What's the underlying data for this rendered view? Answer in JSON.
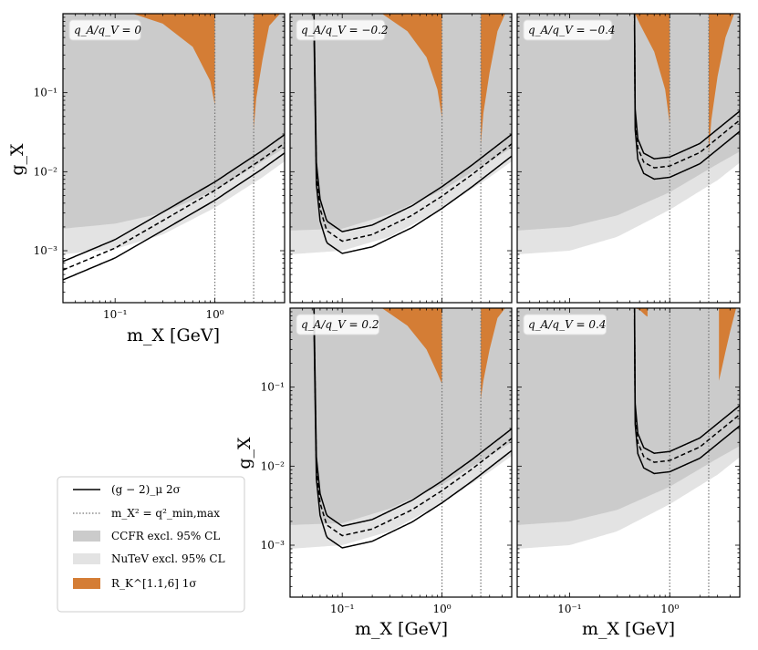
{
  "colors": {
    "nutev": "#e3e3e3",
    "ccfr": "#cbcbcb",
    "rk": "#d47d35",
    "line": "#000000",
    "vline": "#777777"
  },
  "axes": {
    "xlabel": "m_X [GeV]",
    "ylabel": "g_X"
  },
  "legend": {
    "items": [
      {
        "key": "g2",
        "label": "(g − 2)_μ 2σ"
      },
      {
        "key": "mx",
        "label": "m_X² = q²_min,max"
      },
      {
        "key": "ccfr",
        "label": "CCFR excl. 95% CL"
      },
      {
        "key": "nutev",
        "label": "NuTeV excl. 95% CL"
      },
      {
        "key": "rk",
        "label": "R_K^[1.1,6] 1σ"
      }
    ]
  },
  "chart_data": [
    {
      "type": "area",
      "annotation": "q_A/q_V = 0",
      "xlim": [
        0.03,
        5
      ],
      "ylim": [
        0.00022,
        1
      ],
      "xscale": "log",
      "yscale": "log",
      "xticks": [
        {
          "v": 0.1,
          "label": "10⁻¹"
        },
        {
          "v": 1,
          "label": "10⁰"
        }
      ],
      "yticks": [
        {
          "v": 0.001,
          "label": "10⁻³"
        },
        {
          "v": 0.01,
          "label": "10⁻²"
        },
        {
          "v": 0.1,
          "label": "10⁻¹"
        }
      ],
      "vlines": [
        1.0,
        2.45
      ],
      "ccfr_lower": {
        "x": [
          0.03,
          0.1,
          0.3,
          1,
          3,
          5
        ],
        "y": [
          0.0019,
          0.0022,
          0.003,
          0.0058,
          0.0135,
          0.02
        ]
      },
      "nutev_lower": {
        "x": [
          0.03,
          0.1,
          0.3,
          1,
          3,
          5
        ],
        "y": [
          0.0009,
          0.00105,
          0.0016,
          0.0035,
          0.0085,
          0.0135
        ]
      },
      "rk_regions": [
        {
          "x": [
            0.15,
            0.3,
            0.6,
            0.9,
            1.0
          ],
          "y": [
            1,
            0.75,
            0.38,
            0.14,
            0.07
          ]
        },
        {
          "x": [
            2.45,
            2.6,
            3.0,
            3.5,
            4.5
          ],
          "y": [
            0.034,
            0.085,
            0.26,
            0.7,
            1
          ]
        }
      ],
      "g2_central": {
        "x": [
          0.03,
          0.1,
          0.3,
          1,
          3,
          5
        ],
        "y": [
          0.00057,
          0.00108,
          0.0024,
          0.0058,
          0.0145,
          0.023
        ]
      },
      "g2_band": [
        0.75,
        1.28
      ]
    },
    {
      "type": "area",
      "annotation": "q_A/q_V = −0.2",
      "xlim": [
        0.03,
        5
      ],
      "ylim": [
        0.00022,
        1
      ],
      "xscale": "log",
      "yscale": "log",
      "xticks": [
        {
          "v": 0.1,
          "label": "10⁻¹"
        },
        {
          "v": 1,
          "label": "10⁰"
        }
      ],
      "yticks": [
        {
          "v": 0.001,
          "label": "10⁻³"
        },
        {
          "v": 0.01,
          "label": "10⁻²"
        },
        {
          "v": 0.1,
          "label": "10⁻¹"
        }
      ],
      "vlines": [
        1.0,
        2.45
      ],
      "ccfr_lower": {
        "x": [
          0.03,
          0.1,
          0.3,
          1,
          3,
          5
        ],
        "y": [
          0.0018,
          0.0019,
          0.0029,
          0.0058,
          0.0135,
          0.02
        ]
      },
      "nutev_lower": {
        "x": [
          0.03,
          0.1,
          0.3,
          1,
          3,
          5
        ],
        "y": [
          0.0009,
          0.001,
          0.0015,
          0.0034,
          0.0085,
          0.0135
        ]
      },
      "rk_regions": [
        {
          "x": [
            0.25,
            0.45,
            0.7,
            0.9,
            1.0
          ],
          "y": [
            1,
            0.6,
            0.28,
            0.11,
            0.048
          ]
        },
        {
          "x": [
            2.45,
            2.6,
            3.0,
            3.6,
            4.3
          ],
          "y": [
            0.022,
            0.055,
            0.18,
            0.6,
            1
          ]
        }
      ],
      "g2_central": {
        "x": [
          0.052,
          0.055,
          0.06,
          0.07,
          0.1,
          0.2,
          0.5,
          1,
          2,
          5
        ],
        "y": [
          1,
          0.01,
          0.0034,
          0.0018,
          0.00132,
          0.0016,
          0.0028,
          0.0049,
          0.0092,
          0.0225
        ]
      },
      "g2_band": [
        0.7,
        1.32
      ]
    },
    {
      "type": "area",
      "annotation": "q_A/q_V = −0.4",
      "xlim": [
        0.03,
        5
      ],
      "ylim": [
        0.00022,
        1
      ],
      "xscale": "log",
      "yscale": "log",
      "xticks": [
        {
          "v": 0.1,
          "label": "10⁻¹"
        },
        {
          "v": 1,
          "label": "10⁰"
        }
      ],
      "yticks": [
        {
          "v": 0.001,
          "label": "10⁻³"
        },
        {
          "v": 0.01,
          "label": "10⁻²"
        },
        {
          "v": 0.1,
          "label": "10⁻¹"
        }
      ],
      "vlines": [
        1.0,
        2.45
      ],
      "ccfr_lower": {
        "x": [
          0.03,
          0.1,
          0.3,
          1,
          3,
          5
        ],
        "y": [
          0.0018,
          0.002,
          0.0028,
          0.0055,
          0.0125,
          0.018
        ]
      },
      "nutev_lower": {
        "x": [
          0.03,
          0.1,
          0.3,
          1,
          3,
          5
        ],
        "y": [
          0.0009,
          0.001,
          0.0015,
          0.0033,
          0.0078,
          0.013
        ]
      },
      "rk_regions": [
        {
          "x": [
            0.45,
            0.5,
            0.7,
            0.9,
            1.0
          ],
          "y": [
            1,
            0.75,
            0.33,
            0.11,
            0.04
          ]
        },
        {
          "x": [
            2.45,
            2.6,
            3.0,
            3.6,
            4.4
          ],
          "y": [
            0.017,
            0.045,
            0.16,
            0.5,
            1
          ]
        }
      ],
      "g2_central": {
        "x": [
          0.445,
          0.45,
          0.48,
          0.55,
          0.7,
          1,
          2,
          5
        ],
        "y": [
          1,
          0.05,
          0.02,
          0.0132,
          0.0112,
          0.0118,
          0.0175,
          0.045
        ]
      },
      "g2_band": [
        0.72,
        1.3
      ]
    },
    {
      "type": "area",
      "annotation": "q_A/q_V = 0.2",
      "xlim": [
        0.03,
        5
      ],
      "ylim": [
        0.00022,
        1
      ],
      "xscale": "log",
      "yscale": "log",
      "xticks": [
        {
          "v": 0.1,
          "label": "10⁻¹"
        },
        {
          "v": 1,
          "label": "10⁰"
        }
      ],
      "yticks": [
        {
          "v": 0.001,
          "label": "10⁻³"
        },
        {
          "v": 0.01,
          "label": "10⁻²"
        },
        {
          "v": 0.1,
          "label": "10⁻¹"
        }
      ],
      "vlines": [
        1.0,
        2.45
      ],
      "ccfr_lower": {
        "x": [
          0.03,
          0.1,
          0.3,
          1,
          3,
          5
        ],
        "y": [
          0.0018,
          0.0019,
          0.0029,
          0.0058,
          0.0135,
          0.02
        ]
      },
      "nutev_lower": {
        "x": [
          0.03,
          0.1,
          0.3,
          1,
          3,
          5
        ],
        "y": [
          0.0009,
          0.001,
          0.0015,
          0.0034,
          0.0085,
          0.0135
        ]
      },
      "rk_regions": [
        {
          "x": [
            0.25,
            0.45,
            0.7,
            0.9,
            1.0
          ],
          "y": [
            1,
            0.6,
            0.3,
            0.15,
            0.11
          ]
        },
        {
          "x": [
            2.45,
            2.6,
            3.0,
            3.6,
            4.3
          ],
          "y": [
            0.07,
            0.12,
            0.3,
            0.75,
            1
          ]
        }
      ],
      "g2_central": {
        "x": [
          0.052,
          0.055,
          0.06,
          0.07,
          0.1,
          0.2,
          0.5,
          1,
          2,
          5
        ],
        "y": [
          1,
          0.01,
          0.0034,
          0.0018,
          0.00132,
          0.0016,
          0.0028,
          0.0049,
          0.0092,
          0.0225
        ]
      },
      "g2_band": [
        0.7,
        1.32
      ]
    },
    {
      "type": "area",
      "annotation": "q_A/q_V = 0.4",
      "xlim": [
        0.03,
        5
      ],
      "ylim": [
        0.00022,
        1
      ],
      "xscale": "log",
      "yscale": "log",
      "xticks": [
        {
          "v": 0.1,
          "label": "10⁻¹"
        },
        {
          "v": 1,
          "label": "10⁰"
        }
      ],
      "yticks": [
        {
          "v": 0.001,
          "label": "10⁻³"
        },
        {
          "v": 0.01,
          "label": "10⁻²"
        },
        {
          "v": 0.1,
          "label": "10⁻¹"
        }
      ],
      "vlines": [
        1.0,
        2.45
      ],
      "ccfr_lower": {
        "x": [
          0.03,
          0.1,
          0.3,
          1,
          3,
          5
        ],
        "y": [
          0.0018,
          0.002,
          0.0028,
          0.0055,
          0.0125,
          0.018
        ]
      },
      "nutev_lower": {
        "x": [
          0.03,
          0.1,
          0.3,
          1,
          3,
          5
        ],
        "y": [
          0.0009,
          0.001,
          0.0015,
          0.0033,
          0.0078,
          0.013
        ]
      },
      "rk_regions": [
        {
          "x": [
            0.45,
            0.5,
            0.55,
            0.58,
            0.6
          ],
          "y": [
            1,
            0.95,
            0.85,
            0.8,
            0.78
          ]
        },
        {
          "x": [
            3.1,
            3.3,
            3.6,
            4.0,
            4.6
          ],
          "y": [
            0.12,
            0.17,
            0.28,
            0.5,
            1
          ]
        }
      ],
      "g2_central": {
        "x": [
          0.445,
          0.45,
          0.48,
          0.55,
          0.7,
          1,
          2,
          5
        ],
        "y": [
          1,
          0.05,
          0.02,
          0.0132,
          0.0112,
          0.0118,
          0.0175,
          0.045
        ]
      },
      "g2_band": [
        0.72,
        1.3
      ]
    }
  ]
}
